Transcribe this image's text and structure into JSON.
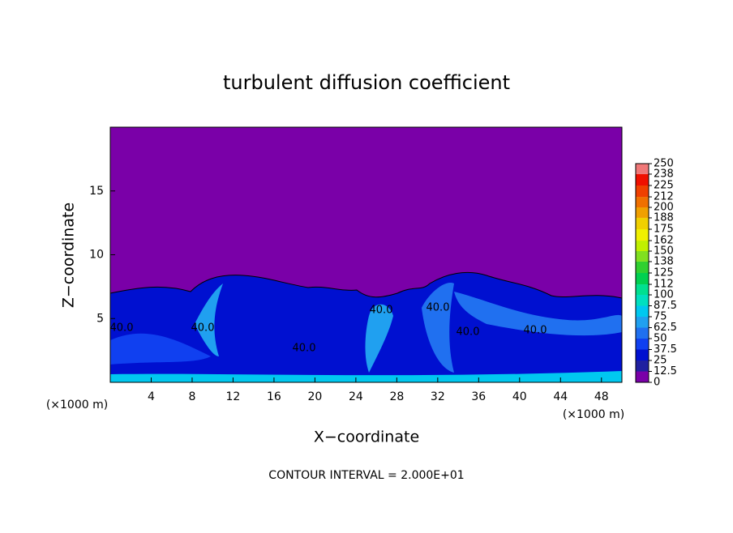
{
  "chart_data": {
    "type": "contour",
    "title": "turbulent diffusion coefficient",
    "xlabel": "X−coordinate",
    "ylabel": "Z−coordinate",
    "x_unit_label": "(×1000 m)",
    "y_unit_label": "(×1000 m)",
    "footnote": "CONTOUR INTERVAL = 2.000E+01",
    "xlim": [
      0,
      50
    ],
    "xticks": [
      4,
      8,
      12,
      16,
      20,
      24,
      28,
      32,
      36,
      40,
      44,
      48
    ],
    "ylim": [
      0,
      20
    ],
    "yticks": [
      5,
      10,
      15
    ],
    "annotations": [
      "40.0",
      "40.0",
      "40.0",
      "40.0",
      "40.0",
      "40.0",
      "40.0"
    ],
    "colorbar": {
      "levels": [
        0,
        12.5,
        25,
        37.5,
        50,
        62.5,
        75,
        87.5,
        100,
        112,
        125,
        138,
        150,
        162,
        175,
        188,
        200,
        212,
        225,
        238,
        250
      ],
      "colors": [
        "#7a00a8",
        "#2020a0",
        "#0010d0",
        "#1040f0",
        "#2070f0",
        "#20a0f0",
        "#00c8f0",
        "#00e0c0",
        "#00e090",
        "#00d050",
        "#30d030",
        "#80e020",
        "#c0f000",
        "#f0f000",
        "#f0d000",
        "#f0a000",
        "#f07000",
        "#f04000",
        "#f01000",
        "#f07878"
      ]
    }
  }
}
